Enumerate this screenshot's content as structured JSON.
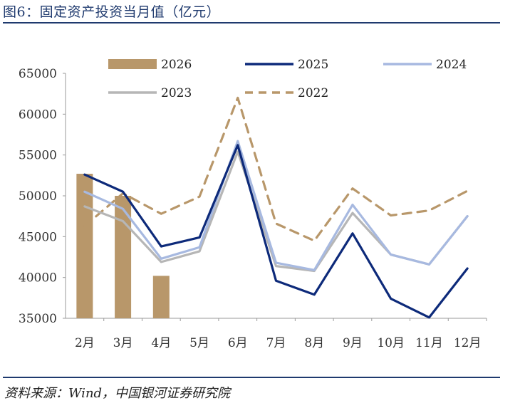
{
  "title": "图6：固定资产投资当月值（亿元）",
  "source": "资料来源：Wind，中国银河证券研究院",
  "colors": {
    "s2026": "#b8976a",
    "s2025": "#0d2a7a",
    "s2024": "#a7b9e0",
    "s2023": "#b6b6b6",
    "s2022": "#b8976a",
    "axis": "#9a9a9a",
    "title": "#1f3a6e"
  },
  "chart_data": {
    "type": "bar+line",
    "categories": [
      "2月",
      "3月",
      "4月",
      "5月",
      "6月",
      "7月",
      "8月",
      "9月",
      "10月",
      "11月",
      "12月"
    ],
    "ylim": [
      35000,
      65000
    ],
    "yticks": [
      35000,
      40000,
      45000,
      50000,
      55000,
      60000,
      65000
    ],
    "grid": false,
    "legend_position": "top",
    "bar_series": {
      "name": "2026",
      "values": [
        52700,
        50000,
        40200,
        null,
        null,
        null,
        null,
        null,
        null,
        null,
        null
      ]
    },
    "line_series": [
      {
        "name": "2025",
        "style": "solid",
        "values": [
          52600,
          50500,
          43800,
          44900,
          56200,
          39600,
          37900,
          45400,
          37400,
          35100,
          41100
        ]
      },
      {
        "name": "2024",
        "style": "solid",
        "values": [
          50500,
          48400,
          42300,
          43700,
          56700,
          41800,
          40900,
          48900,
          42800,
          41600,
          47500
        ]
      },
      {
        "name": "2023",
        "style": "solid",
        "values": [
          48700,
          46900,
          41900,
          43200,
          55400,
          41400,
          40800,
          47900,
          42800,
          41600,
          47500
        ]
      },
      {
        "name": "2022",
        "style": "dashed",
        "values": [
          46300,
          50300,
          47800,
          49900,
          62000,
          46600,
          44500,
          50900,
          47600,
          48200,
          50600
        ]
      }
    ]
  }
}
